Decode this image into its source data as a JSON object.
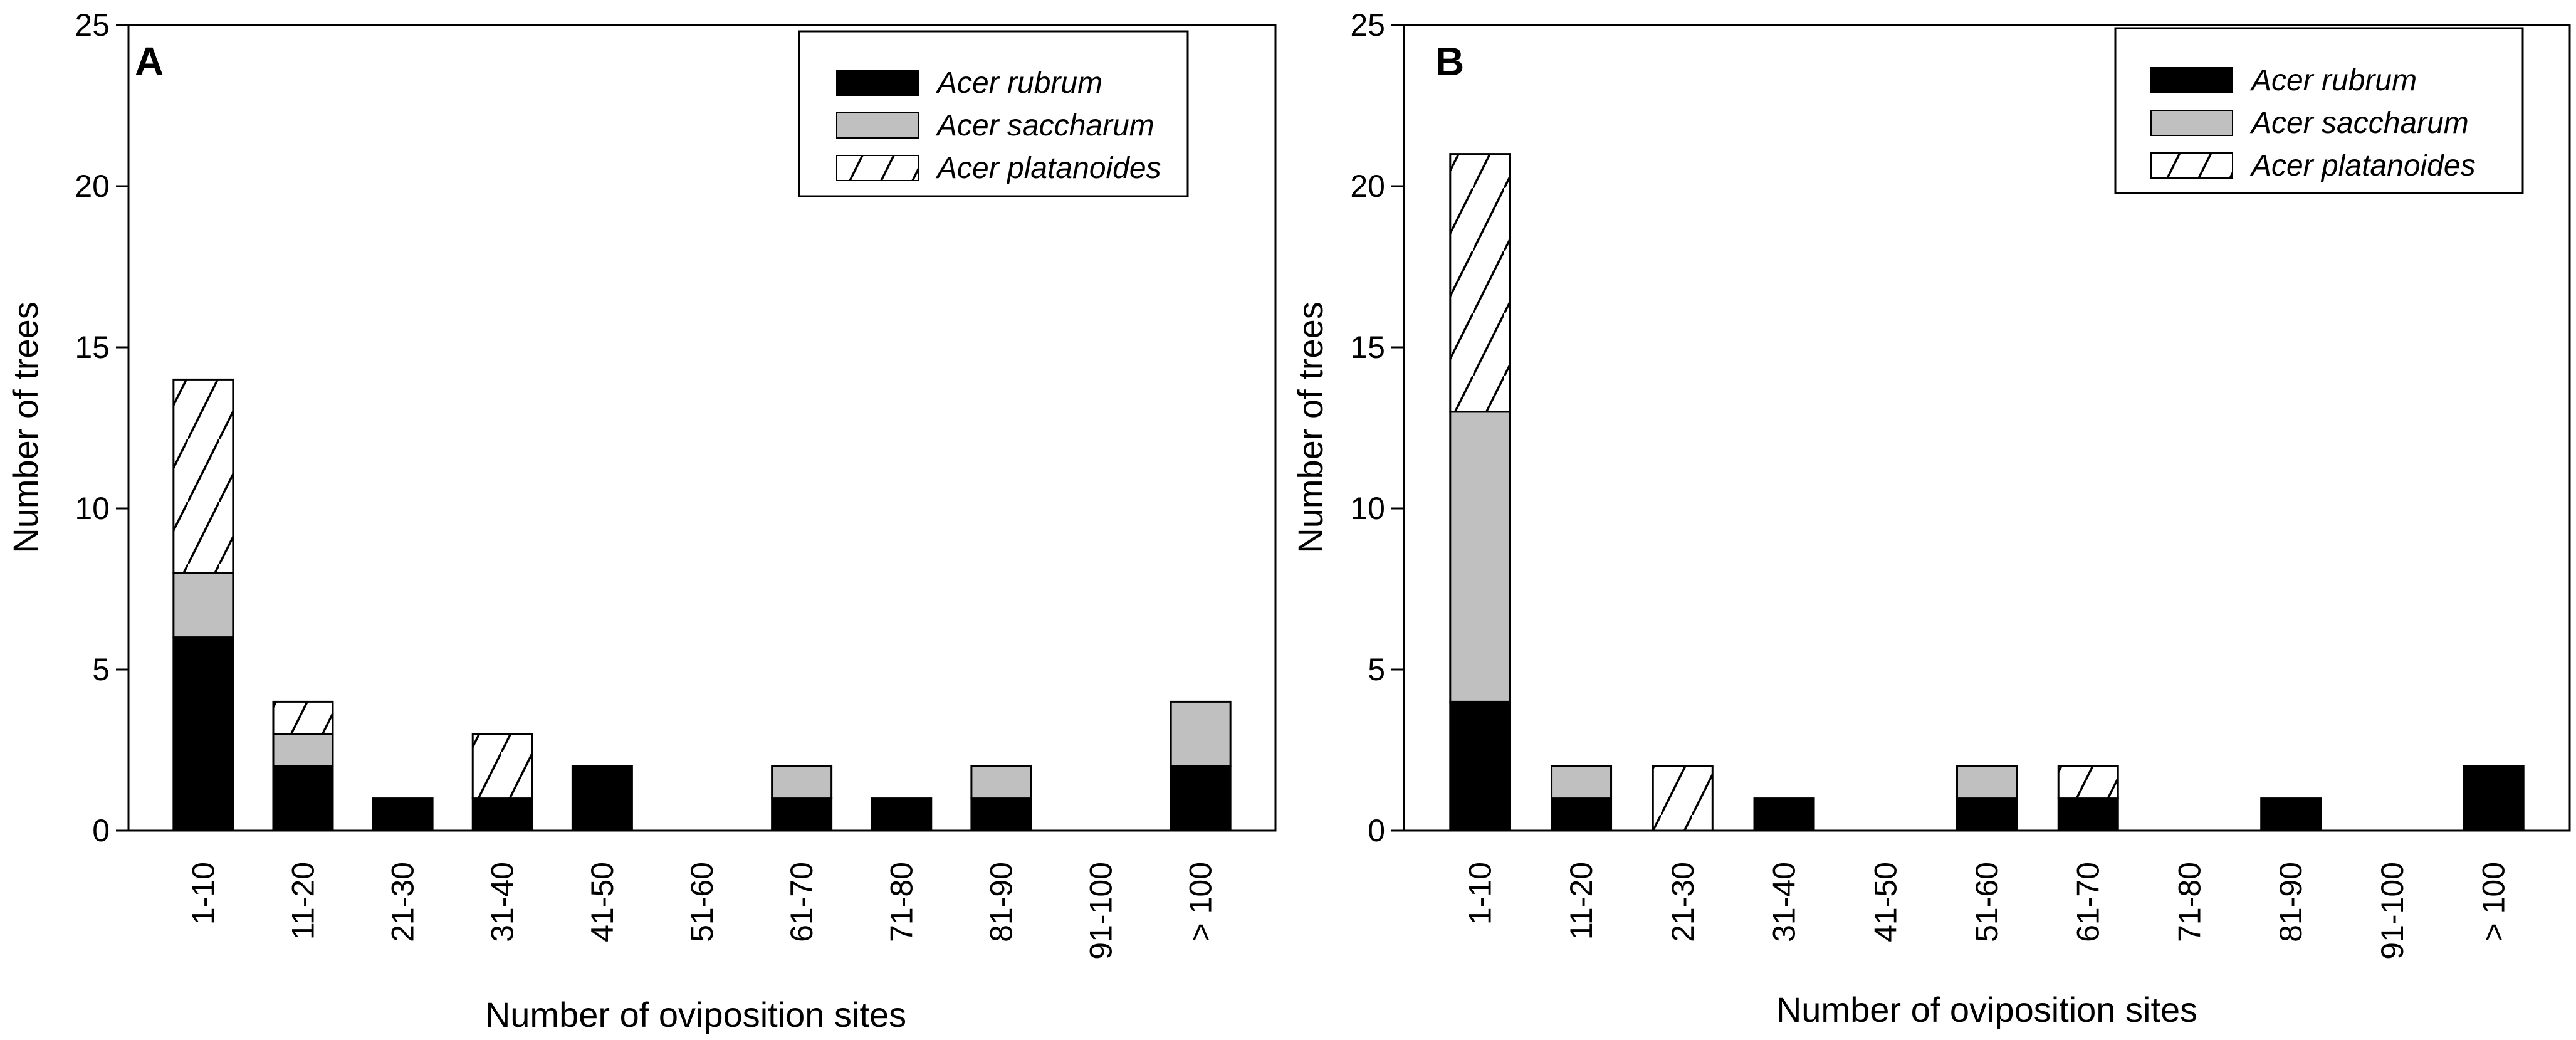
{
  "chart_data": [
    {
      "panel": "A",
      "type": "bar",
      "stacked": true,
      "title": "",
      "xlabel": "Number of oviposition sites",
      "ylabel": "Number of trees",
      "ylim": [
        0,
        25
      ],
      "yticks": [
        0,
        5,
        10,
        15,
        20,
        25
      ],
      "categories": [
        "1-10",
        "11-20",
        "21-30",
        "31-40",
        "41-50",
        "51-60",
        "61-70",
        "71-80",
        "81-90",
        "91-100",
        "> 100"
      ],
      "series": [
        {
          "name": "Acer rubrum",
          "values": [
            6,
            2,
            1,
            1,
            2,
            0,
            1,
            1,
            1,
            0,
            2
          ]
        },
        {
          "name": "Acer saccharum",
          "values": [
            2,
            1,
            0,
            0,
            0,
            0,
            1,
            0,
            1,
            0,
            2
          ]
        },
        {
          "name": "Acer platanoides",
          "values": [
            6,
            1,
            0,
            2,
            0,
            0,
            0,
            0,
            0,
            0,
            0
          ]
        }
      ],
      "legend_position": "top-right"
    },
    {
      "panel": "B",
      "type": "bar",
      "stacked": true,
      "title": "",
      "xlabel": "Number of oviposition sites",
      "ylabel": "Number of trees",
      "ylim": [
        0,
        25
      ],
      "yticks": [
        0,
        5,
        10,
        15,
        20,
        25
      ],
      "categories": [
        "1-10",
        "11-20",
        "21-30",
        "31-40",
        "41-50",
        "51-60",
        "61-70",
        "71-80",
        "81-90",
        "91-100",
        "> 100"
      ],
      "series": [
        {
          "name": "Acer rubrum",
          "values": [
            4,
            1,
            0,
            1,
            0,
            1,
            1,
            0,
            1,
            0,
            2
          ]
        },
        {
          "name": "Acer saccharum",
          "values": [
            9,
            1,
            0,
            0,
            0,
            1,
            0,
            0,
            0,
            0,
            0
          ]
        },
        {
          "name": "Acer platanoides",
          "values": [
            8,
            0,
            2,
            0,
            0,
            0,
            1,
            0,
            0,
            0,
            0
          ]
        }
      ],
      "legend_position": "top-right"
    }
  ],
  "series_styles": [
    {
      "name": "Acer rubrum",
      "fill": "#000000",
      "pattern": "solid"
    },
    {
      "name": "Acer saccharum",
      "fill": "#c0c0c0",
      "pattern": "solid"
    },
    {
      "name": "Acer platanoides",
      "fill": "#ffffff",
      "pattern": "diagonal-hatch"
    }
  ]
}
